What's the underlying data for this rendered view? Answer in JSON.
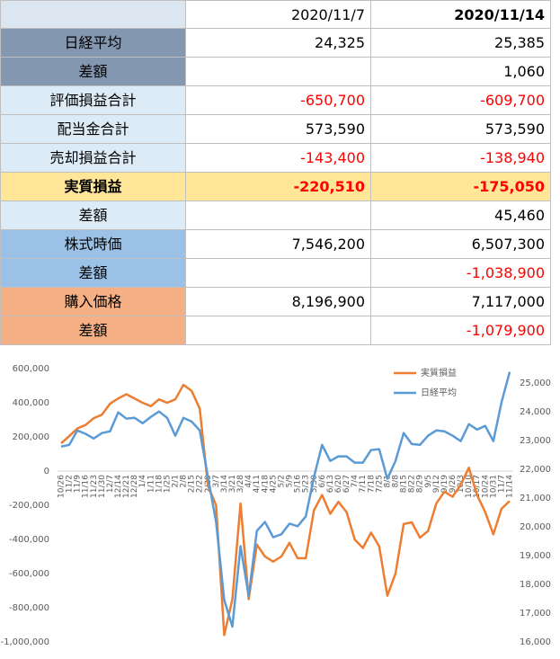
{
  "table": {
    "header": [
      "2020/11/7",
      "2020/11/14"
    ],
    "rows": [
      [
        "日経平均",
        "24,325",
        "25,385"
      ],
      [
        "差額",
        "",
        "1,060"
      ],
      [
        "評価損益合計",
        "-650,700",
        "-609,700"
      ],
      [
        "配当金合計",
        "573,590",
        "573,590"
      ],
      [
        "売却損益合計",
        "-143,400",
        "-138,940"
      ],
      [
        "実質損益",
        "-220,510",
        "-175,050"
      ],
      [
        "差額",
        "",
        "45,460"
      ],
      [
        "株式時価",
        "7,546,200",
        "6,507,300"
      ],
      [
        "差額",
        "",
        "-1,038,900"
      ],
      [
        "購入価格",
        "8,196,900",
        "7,117,000"
      ],
      [
        "差額",
        "",
        "-1,079,900"
      ]
    ]
  },
  "chart_data": {
    "type": "line",
    "categories": [
      "10/26",
      "11/2",
      "11/9",
      "11/16",
      "11/23",
      "11/30",
      "12/7",
      "12/14",
      "12/21",
      "12/28",
      "1/4",
      "1/11",
      "1/18",
      "1/25",
      "2/1",
      "2/8",
      "2/15",
      "2/22",
      "2/29",
      "3/7",
      "3/14",
      "3/21",
      "3/28",
      "4/4",
      "4/11",
      "4/18",
      "4/25",
      "5/2",
      "5/9",
      "5/16",
      "5/23",
      "5/30",
      "6/6",
      "6/13",
      "6/20",
      "6/27",
      "7/4",
      "7/11",
      "7/18",
      "7/25",
      "8/1",
      "8/8",
      "8/15",
      "8/22",
      "8/29",
      "9/5",
      "9/12",
      "9/19",
      "9/26",
      "10/3",
      "10/10",
      "10/17",
      "10/24",
      "10/31",
      "11/7",
      "11/14"
    ],
    "series": [
      {
        "name": "実質損益",
        "color": "#ed7d31",
        "values": [
          163000,
          205000,
          250000,
          270000,
          310000,
          330000,
          395000,
          425000,
          450000,
          425000,
          400000,
          380000,
          420000,
          400000,
          420000,
          505000,
          470000,
          365000,
          -85000,
          -200000,
          -960000,
          -750000,
          -190000,
          -750000,
          -430000,
          -500000,
          -530000,
          -500000,
          -420000,
          -510000,
          -510000,
          -230000,
          -140000,
          -250000,
          -180000,
          -240000,
          -400000,
          -450000,
          -360000,
          -440000,
          -730000,
          -600000,
          -310000,
          -300000,
          -390000,
          -350000,
          -190000,
          -120000,
          -150000,
          -80000,
          20000,
          -140000,
          -240000,
          -370000,
          -220510,
          -175050
        ]
      },
      {
        "name": "日経平均",
        "color": "#5b9bd5",
        "axis": "y2",
        "values": [
          22790,
          22850,
          23350,
          23230,
          23070,
          23260,
          23320,
          23980,
          23760,
          23790,
          23600,
          23820,
          24010,
          23790,
          23170,
          23790,
          23660,
          23350,
          21730,
          20170,
          17460,
          16530,
          19330,
          17590,
          19860,
          20170,
          19640,
          19740,
          20110,
          20020,
          20360,
          21730,
          22850,
          22290,
          22450,
          22450,
          22230,
          22230,
          22670,
          22700,
          21670,
          22290,
          23260,
          22880,
          22850,
          23170,
          23350,
          23320,
          23170,
          22980,
          23570,
          23380,
          23510,
          22980,
          24325,
          25385
        ]
      }
    ],
    "ylim": [
      -1000000,
      600000
    ],
    "yticks": [
      {
        "value": -1000000,
        "label": "-1,000,000"
      },
      {
        "value": -800000,
        "label": "-800,000"
      },
      {
        "value": -600000,
        "label": "-600,000"
      },
      {
        "value": -400000,
        "label": "-400,000"
      },
      {
        "value": -200000,
        "label": "-200,000"
      },
      0,
      {
        "value": 200000,
        "label": "200,000"
      },
      {
        "value": 400000,
        "label": "400,000"
      },
      {
        "value": 600000,
        "label": "600,000"
      }
    ],
    "y2lim": [
      16000,
      25500
    ],
    "y2ticks": [
      {
        "value": 16000,
        "label": "16,000"
      },
      {
        "value": 17000,
        "label": "17,000"
      },
      {
        "value": 18000,
        "label": "18,000"
      },
      {
        "value": 19000,
        "label": "19,000"
      },
      {
        "value": 20000,
        "label": "20,000"
      },
      {
        "value": 21000,
        "label": "21,000"
      },
      {
        "value": 22000,
        "label": "22,000"
      },
      {
        "value": 23000,
        "label": "23,000"
      },
      {
        "value": 24000,
        "label": "24,000"
      },
      {
        "value": 25000,
        "label": "25,000"
      }
    ],
    "legend": "top-right"
  }
}
